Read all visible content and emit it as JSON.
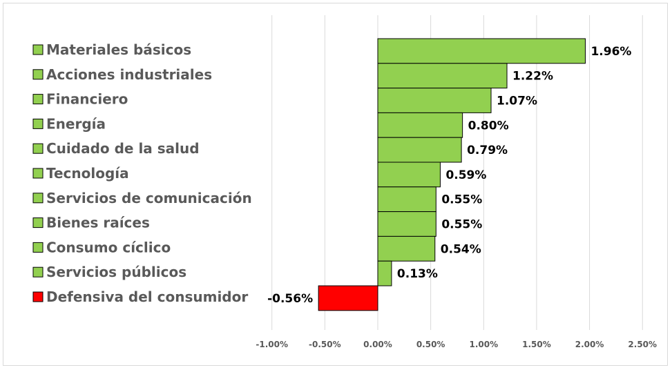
{
  "chart_data": {
    "type": "bar",
    "orientation": "horizontal",
    "title": "",
    "xlabel": "",
    "ylabel": "",
    "categories": [
      "Materiales básicos",
      "Acciones industriales",
      "Financiero",
      "Energía",
      "Cuidado de la salud",
      "Tecnología",
      "Servicios de comunicación",
      "Bienes raíces",
      "Consumo cíclico",
      "Servicios públicos",
      "Defensiva del consumidor"
    ],
    "values": [
      1.96,
      1.22,
      1.07,
      0.8,
      0.79,
      0.59,
      0.55,
      0.55,
      0.54,
      0.13,
      -0.56
    ],
    "value_labels": [
      "1.96%",
      "1.22%",
      "1.07%",
      "0.80%",
      "0.79%",
      "0.59%",
      "0.55%",
      "0.55%",
      "0.54%",
      "0.13%",
      "-0.56%"
    ],
    "xlim": [
      -1.0,
      2.5
    ],
    "x_ticks": [
      -1.0,
      -0.5,
      0.0,
      0.5,
      1.0,
      1.5,
      2.0,
      2.5
    ],
    "x_tick_labels": [
      "-1.00%",
      "-0.50%",
      "0.00%",
      "0.50%",
      "1.00%",
      "1.50%",
      "2.00%",
      "2.50%"
    ],
    "grid": "vertical",
    "legend": "left",
    "colors": {
      "positive": "#92d050",
      "negative": "#ff0000",
      "bar_border": "#000000",
      "gridline": "#d9d9d9",
      "legend_text": "#595959",
      "tick_text": "#595959"
    }
  }
}
